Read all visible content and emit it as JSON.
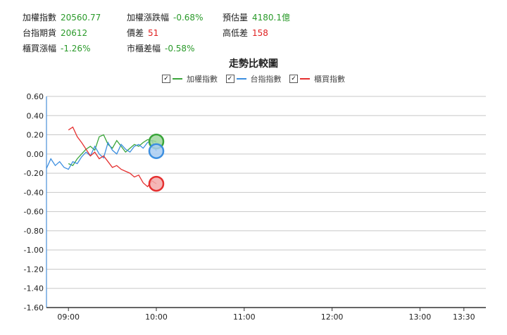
{
  "stats": {
    "taiex_label": "加權指數",
    "taiex_value": "20560.77",
    "taiex_chg_label": "加權漲跌幅",
    "taiex_chg_value": "-0.68%",
    "volume_label": "預估量",
    "volume_value": "4180.1億",
    "futures_label": "台指期貨",
    "futures_value": "20612",
    "spread_label": "價差",
    "spread_value": "51",
    "hl_label": "高低差",
    "hl_value": "158",
    "otc_label": "櫃買漲幅",
    "otc_value": "-1.26%",
    "mkt_spread_label": "市櫃差幅",
    "mkt_spread_value": "-0.58%"
  },
  "colors": {
    "taiex": "#3aa53a",
    "futures": "#3d8fe0",
    "otc": "#e53030",
    "positive": "#2a9a2a",
    "negative": "#e02020"
  },
  "chart_data": {
    "type": "line",
    "title": "走勢比較圖",
    "xlabel": "",
    "ylabel": "",
    "ylim": [
      -1.6,
      0.6
    ],
    "yticks": [
      "0.60",
      "0.40",
      "0.20",
      "0.00",
      "-0.20",
      "-0.40",
      "-0.60",
      "-0.80",
      "-1.00",
      "-1.20",
      "-1.40",
      "-1.60"
    ],
    "xticks": [
      "09:00",
      "10:00",
      "11:00",
      "12:00",
      "13:00",
      "13:30"
    ],
    "xrange": [
      "08:45",
      "13:45"
    ],
    "legend_position": "top-center",
    "series": [
      {
        "name": "加權指數",
        "color": "#3aa53a",
        "x": [
          "09:00",
          "09:03",
          "09:06",
          "09:09",
          "09:12",
          "09:15",
          "09:18",
          "09:21",
          "09:24",
          "09:27",
          "09:30",
          "09:33",
          "09:36",
          "09:39",
          "09:42",
          "09:45",
          "09:48",
          "09:51",
          "09:54",
          "09:57",
          "10:00"
        ],
        "y": [
          -0.1,
          -0.12,
          -0.05,
          0.0,
          0.05,
          0.08,
          0.04,
          0.18,
          0.2,
          0.1,
          0.06,
          0.14,
          0.08,
          0.02,
          0.06,
          0.1,
          0.08,
          0.12,
          0.15,
          0.14,
          0.13
        ]
      },
      {
        "name": "台指指數",
        "color": "#3d8fe0",
        "x": [
          "08:45",
          "08:48",
          "08:51",
          "08:54",
          "08:57",
          "09:00",
          "09:03",
          "09:06",
          "09:09",
          "09:12",
          "09:15",
          "09:18",
          "09:21",
          "09:24",
          "09:27",
          "09:30",
          "09:33",
          "09:36",
          "09:39",
          "09:42",
          "09:45",
          "09:48",
          "09:51",
          "09:54",
          "09:57",
          "10:00"
        ],
        "y": [
          -0.15,
          -0.05,
          -0.12,
          -0.08,
          -0.14,
          -0.16,
          -0.08,
          -0.1,
          -0.03,
          0.02,
          -0.02,
          0.08,
          0.0,
          -0.04,
          0.12,
          0.04,
          0.0,
          0.1,
          0.05,
          0.02,
          0.08,
          0.1,
          0.06,
          0.12,
          0.14,
          0.03
        ]
      },
      {
        "name": "櫃買指數",
        "color": "#e53030",
        "x": [
          "09:00",
          "09:03",
          "09:06",
          "09:09",
          "09:12",
          "09:15",
          "09:18",
          "09:21",
          "09:24",
          "09:27",
          "09:30",
          "09:33",
          "09:36",
          "09:39",
          "09:42",
          "09:45",
          "09:48",
          "09:51",
          "09:54",
          "09:57",
          "10:00"
        ],
        "y": [
          0.25,
          0.28,
          0.18,
          0.12,
          0.05,
          -0.02,
          0.02,
          -0.05,
          -0.02,
          -0.08,
          -0.14,
          -0.12,
          -0.16,
          -0.18,
          -0.2,
          -0.24,
          -0.22,
          -0.3,
          -0.34,
          -0.28,
          -0.31
        ]
      }
    ]
  }
}
